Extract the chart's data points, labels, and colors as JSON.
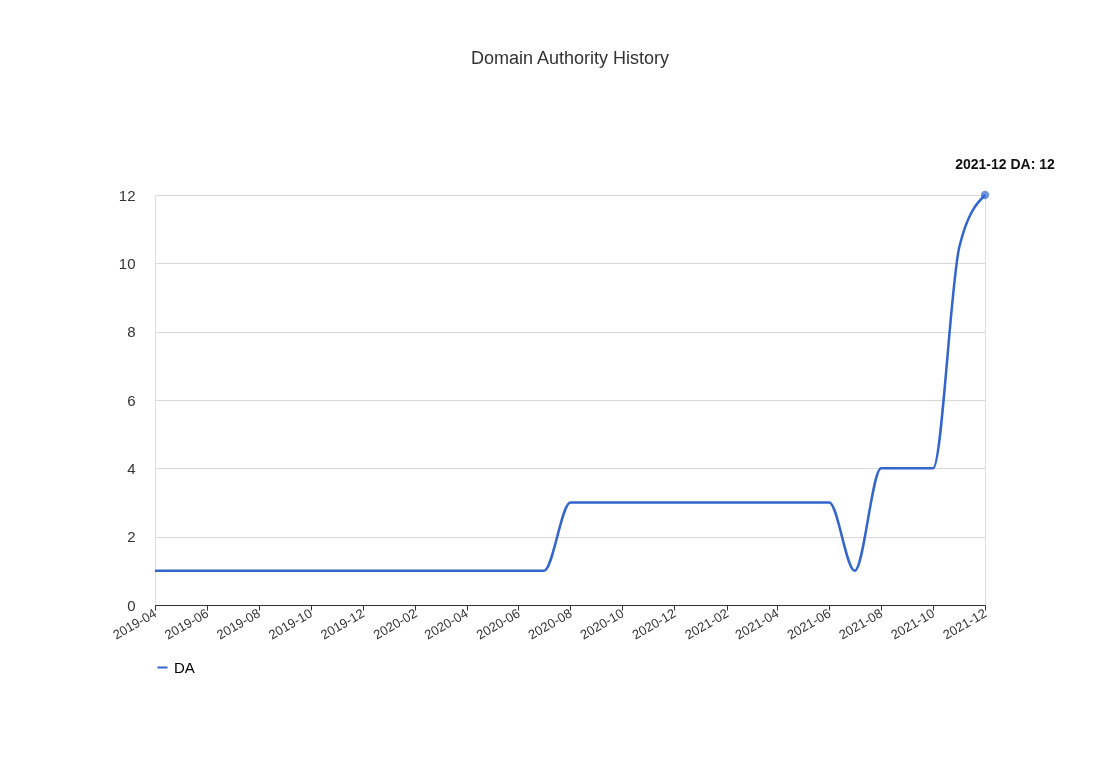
{
  "chart_data": {
    "type": "line",
    "title": "Domain Authority History",
    "x": [
      "2019-04",
      "2019-05",
      "2019-06",
      "2019-07",
      "2019-08",
      "2019-09",
      "2019-10",
      "2019-11",
      "2019-12",
      "2020-01",
      "2020-02",
      "2020-03",
      "2020-04",
      "2020-05",
      "2020-06",
      "2020-07",
      "2020-08",
      "2020-09",
      "2020-10",
      "2020-11",
      "2020-12",
      "2021-01",
      "2021-02",
      "2021-03",
      "2021-04",
      "2021-05",
      "2021-06",
      "2021-07",
      "2021-08",
      "2021-09",
      "2021-10",
      "2021-11",
      "2021-12"
    ],
    "series": [
      {
        "name": "DA",
        "color": "#3366cc",
        "values": [
          1,
          1,
          1,
          1,
          1,
          1,
          1,
          1,
          1,
          1,
          1,
          1,
          1,
          1,
          1,
          1,
          3,
          3,
          3,
          3,
          3,
          3,
          3,
          3,
          3,
          3,
          3,
          1,
          4,
          4,
          4,
          10.5,
          12
        ]
      }
    ],
    "xlim": [
      "2019-04",
      "2021-12"
    ],
    "xticks": [
      "2019-04",
      "2019-06",
      "2019-08",
      "2019-10",
      "2019-12",
      "2020-02",
      "2020-04",
      "2020-06",
      "2020-08",
      "2020-10",
      "2020-12",
      "2021-02",
      "2021-04",
      "2021-06",
      "2021-08",
      "2021-10",
      "2021-12"
    ],
    "ylim": [
      0,
      12
    ],
    "yticks": [
      0,
      2,
      4,
      6,
      8,
      10,
      12
    ],
    "annotations": [
      {
        "text": "2021-12 DA: 12",
        "x": "2021-12",
        "y": 12
      }
    ],
    "grid": "y",
    "legend": "bottom",
    "marker": "none",
    "line_style": "solid"
  }
}
